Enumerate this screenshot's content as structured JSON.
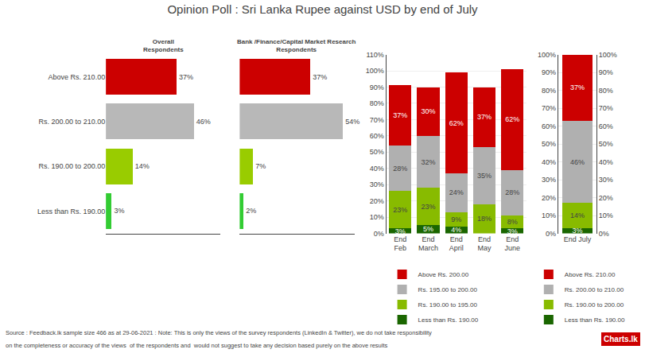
{
  "title": "Opinion Poll : Sri Lanka Rupee against USD by end of July",
  "annotations": [
    "Source : Feedback.lk sample size 466 as at 29-06-2021 : Note: This is only the views of the survey respondents (LinkedIn & Twitter), we do not take responsibility",
    "on the completeness or accuracy of the views  of the respondents and  would not suggest to take any decision based purely on the above results",
    "Charts.lk"
  ],
  "chart_data": [
    {
      "type": "bar",
      "orientation": "horizontal",
      "title": "Overall\nRespondents",
      "categories": [
        "Above Rs. 210.00",
        "Rs. 200.00 to 210.00",
        "Rs. 190.00 to 200.00",
        "Less than Rs. 190.00"
      ],
      "values": [
        37,
        46,
        14,
        3
      ],
      "value_labels": [
        "37%",
        "46%",
        "14%",
        "3%"
      ],
      "colors": [
        "#cc0000",
        "#b8b8b8",
        "#99cc00",
        "#33cc33"
      ],
      "xlim": [
        0,
        60
      ],
      "data_labels": true,
      "tick_labels": "y"
    },
    {
      "type": "bar",
      "orientation": "horizontal",
      "title": "Bank /Finance/Capital Market Research\nRespondents",
      "categories": [
        "Above Rs. 210.00",
        "Rs. 200.00 to 210.00",
        "Rs. 190.00 to 200.00",
        "Less than Rs. 190.00"
      ],
      "values": [
        37,
        54,
        7,
        2
      ],
      "value_labels": [
        "37%",
        "54%",
        "7%",
        "2%"
      ],
      "colors": [
        "#cc0000",
        "#b8b8b8",
        "#99cc00",
        "#33cc33"
      ],
      "xlim": [
        0,
        60
      ],
      "data_labels": true,
      "tick_labels": false
    },
    {
      "type": "bar",
      "stacked": true,
      "categories": [
        "End\nFeb",
        "End\nMarch",
        "End\nApril",
        "End\nMay",
        "End\nJune"
      ],
      "series": [
        {
          "name": "Less than Rs. 190.00",
          "color": "#1a6600",
          "values": [
            3,
            5,
            4,
            0,
            3
          ],
          "value_labels": [
            "3%",
            "5%",
            "4%",
            null,
            "3%"
          ]
        },
        {
          "name": "Rs. 190.00 to 195.00",
          "color": "#88bb00",
          "values": [
            23,
            23,
            9,
            18,
            8
          ],
          "value_labels": [
            "23%",
            "23%",
            "9%",
            "18%",
            "8%"
          ]
        },
        {
          "name": "Rs. 195.00 to 200.00",
          "color": "#b0b0b0",
          "values": [
            28,
            32,
            24,
            35,
            28
          ],
          "value_labels": [
            "28%",
            "32%",
            "24%",
            "35%",
            "28%"
          ]
        },
        {
          "name": "Above Rs. 200.00",
          "color": "#cc0000",
          "values": [
            37,
            30,
            62,
            37,
            62
          ],
          "value_labels": [
            "37%",
            "30%",
            "62%",
            "37%",
            "62%"
          ]
        }
      ],
      "ylim": [
        0,
        110
      ],
      "yticks": [
        {
          "value": 0,
          "label": "0%"
        },
        {
          "value": 10,
          "label": "10%"
        },
        {
          "value": 20,
          "label": "20%"
        },
        {
          "value": 30,
          "label": "30%"
        },
        {
          "value": 40,
          "label": "40%"
        },
        {
          "value": 50,
          "label": "50%"
        },
        {
          "value": 60,
          "label": "60%"
        },
        {
          "value": 70,
          "label": "70%"
        },
        {
          "value": 80,
          "label": "80%"
        },
        {
          "value": 90,
          "label": "90%"
        },
        {
          "value": 100,
          "label": "100%"
        },
        {
          "value": 110,
          "label": "110%"
        }
      ],
      "grid": true,
      "data_labels": true,
      "legend": "bottom"
    },
    {
      "type": "bar",
      "stacked": true,
      "categories": [
        "End July"
      ],
      "series": [
        {
          "name": "Less than Rs. 190.00",
          "color": "#1a6600",
          "values": [
            3
          ],
          "value_labels": [
            "3%"
          ]
        },
        {
          "name": "Rs. 190.00 to 200.00",
          "color": "#88bb00",
          "values": [
            14
          ],
          "value_labels": [
            "14%"
          ]
        },
        {
          "name": "Rs. 200.00 to 210.00",
          "color": "#b0b0b0",
          "values": [
            46
          ],
          "value_labels": [
            "46%"
          ]
        },
        {
          "name": "Above Rs. 210.00",
          "color": "#cc0000",
          "values": [
            37
          ],
          "value_labels": [
            "37%"
          ]
        }
      ],
      "ylim": [
        0,
        100
      ],
      "yticks": [
        {
          "value": 0,
          "label": "0%"
        },
        {
          "value": 10,
          "label": "10%"
        },
        {
          "value": 20,
          "label": "20%"
        },
        {
          "value": 30,
          "label": "30%"
        },
        {
          "value": 40,
          "label": "40%"
        },
        {
          "value": 50,
          "label": "50%"
        },
        {
          "value": 60,
          "label": "60%"
        },
        {
          "value": 70,
          "label": "70%"
        },
        {
          "value": 80,
          "label": "80%"
        },
        {
          "value": 90,
          "label": "90%"
        },
        {
          "value": 100,
          "label": "100%"
        }
      ],
      "y2lim": [
        0,
        100
      ],
      "y2ticks": [
        {
          "value": 0,
          "label": "0%"
        },
        {
          "value": 10,
          "label": "10%"
        },
        {
          "value": 20,
          "label": "20%"
        },
        {
          "value": 30,
          "label": "30%"
        },
        {
          "value": 40,
          "label": "40%"
        },
        {
          "value": 50,
          "label": "50%"
        },
        {
          "value": 60,
          "label": "60%"
        },
        {
          "value": 70,
          "label": "70%"
        },
        {
          "value": 80,
          "label": "80%"
        },
        {
          "value": 90,
          "label": "90%"
        },
        {
          "value": 100,
          "label": "100%"
        }
      ],
      "grid": true,
      "data_labels": true,
      "legend": "bottom"
    }
  ]
}
